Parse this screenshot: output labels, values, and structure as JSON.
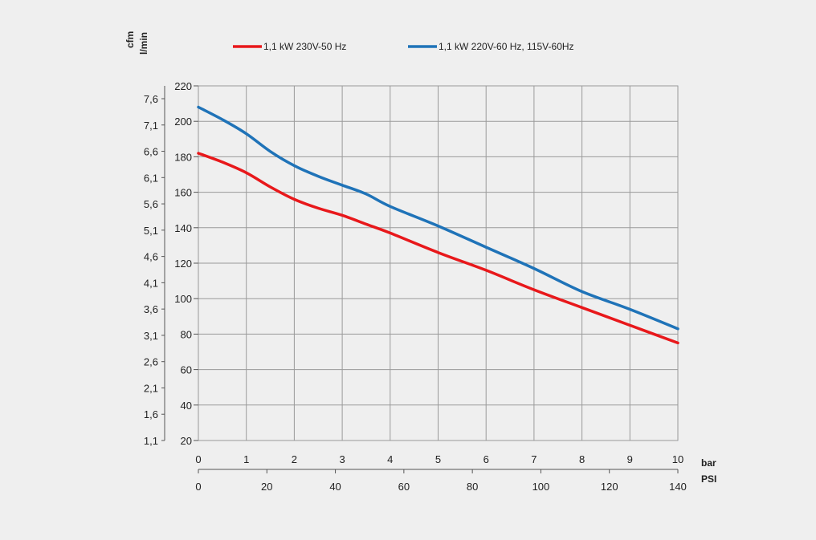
{
  "colors": {
    "background": "#efefef",
    "plot_border": "#8aa8c8",
    "grid": "#9a9a9a",
    "red_series": "#e8181b",
    "blue_series": "#1f73b8"
  },
  "units": {
    "y_left_outer": "cfm",
    "y_left_inner": "l/min",
    "x_primary": "bar",
    "x_secondary": "PSI"
  },
  "chart_data": {
    "type": "line",
    "title": "",
    "xlabel": "bar",
    "ylabel": "l/min",
    "xlim": [
      0,
      10
    ],
    "ylim": [
      20,
      220
    ],
    "grid": true,
    "legend_position": "top",
    "x_ticks": [
      "0",
      "1",
      "2",
      "3",
      "4",
      "5",
      "6",
      "7",
      "8",
      "9",
      "10"
    ],
    "y_ticks": [
      "220",
      "200",
      "180",
      "160",
      "140",
      "120",
      "100",
      "80",
      "60",
      "40",
      "20"
    ],
    "y_ticks_values": [
      220,
      200,
      180,
      160,
      140,
      120,
      100,
      80,
      60,
      40,
      20
    ],
    "secondary_y_axis": {
      "label": "cfm",
      "ticks": [
        "7,6",
        "7,1",
        "6,6",
        "6,1",
        "5,6",
        "5,1",
        "4,6",
        "4,1",
        "3,6",
        "3,1",
        "2,6",
        "2,1",
        "1,6",
        "1,1"
      ],
      "range": [
        1.1,
        7.6
      ]
    },
    "secondary_x_axis": {
      "label": "PSI",
      "ticks": [
        "0",
        "20",
        "40",
        "60",
        "80",
        "100",
        "120",
        "140"
      ],
      "range": [
        0,
        140
      ]
    },
    "series": [
      {
        "name": "1,1 kW 230V-50 Hz",
        "color": "#e8181b",
        "x": [
          0,
          0.5,
          1,
          1.5,
          2,
          2.5,
          3,
          3.5,
          4,
          5,
          6,
          7,
          8,
          9,
          10
        ],
        "y": [
          182,
          177,
          171,
          163,
          156,
          151,
          147,
          142,
          137,
          126,
          116,
          105,
          95,
          85,
          75
        ]
      },
      {
        "name": "1,1 kW 220V-60 Hz, 115V-60Hz",
        "color": "#1f73b8",
        "x": [
          0,
          0.5,
          1,
          1.5,
          2,
          2.5,
          3,
          3.5,
          4,
          5,
          6,
          7,
          8,
          9,
          10
        ],
        "y": [
          208,
          201,
          193,
          183,
          175,
          169,
          164,
          159,
          152,
          141,
          129,
          117,
          104,
          94,
          83
        ]
      }
    ]
  }
}
